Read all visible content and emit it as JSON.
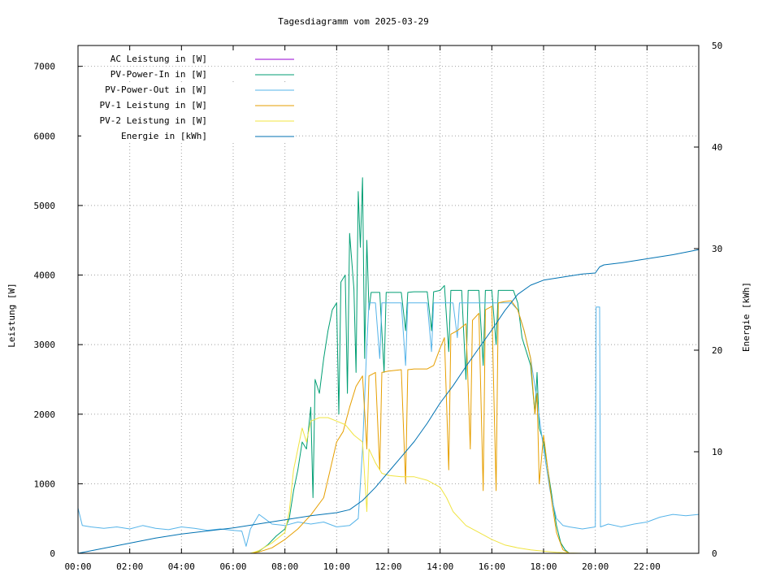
{
  "chart_data": {
    "type": "line",
    "title": "Tagesdiagramm vom 2025-03-29",
    "xlabel": "",
    "ylabel": "Leistung [W]",
    "y2label": "Energie [kWh]",
    "xlim": [
      "00:00",
      "24:00"
    ],
    "ylim": [
      0,
      7300
    ],
    "y2lim": [
      0,
      50
    ],
    "x_ticks": [
      "00:00",
      "02:00",
      "04:00",
      "06:00",
      "08:00",
      "10:00",
      "12:00",
      "14:00",
      "16:00",
      "18:00",
      "20:00",
      "22:00"
    ],
    "y_ticks": [
      0,
      1000,
      2000,
      3000,
      4000,
      5000,
      6000,
      7000
    ],
    "y2_ticks": [
      0,
      10,
      20,
      30,
      40,
      50
    ],
    "grid": true,
    "legend_position": "top-left",
    "series": [
      {
        "name": "AC Leistung in [W]",
        "axis": "left",
        "color": "#9400d3",
        "points": []
      },
      {
        "name": "PV-Power-In in [W]",
        "axis": "left",
        "color": "#009e73",
        "points": [
          [
            "06:40",
            0
          ],
          [
            "07:00",
            30
          ],
          [
            "07:20",
            120
          ],
          [
            "07:40",
            250
          ],
          [
            "08:00",
            350
          ],
          [
            "08:10",
            500
          ],
          [
            "08:20",
            900
          ],
          [
            "08:30",
            1200
          ],
          [
            "08:40",
            1600
          ],
          [
            "08:50",
            1500
          ],
          [
            "09:00",
            2100
          ],
          [
            "09:05",
            800
          ],
          [
            "09:10",
            2500
          ],
          [
            "09:20",
            2300
          ],
          [
            "09:30",
            2800
          ],
          [
            "09:40",
            3200
          ],
          [
            "09:50",
            3500
          ],
          [
            "10:00",
            3600
          ],
          [
            "10:05",
            2000
          ],
          [
            "10:10",
            3900
          ],
          [
            "10:20",
            4000
          ],
          [
            "10:25",
            2300
          ],
          [
            "10:30",
            4600
          ],
          [
            "10:40",
            3800
          ],
          [
            "10:45",
            2600
          ],
          [
            "10:50",
            5200
          ],
          [
            "10:55",
            4400
          ],
          [
            "11:00",
            5400
          ],
          [
            "11:05",
            2800
          ],
          [
            "11:10",
            4500
          ],
          [
            "11:15",
            3500
          ],
          [
            "11:20",
            3750
          ],
          [
            "11:40",
            3750
          ],
          [
            "11:50",
            2600
          ],
          [
            "11:55",
            3750
          ],
          [
            "12:30",
            3750
          ],
          [
            "12:40",
            3200
          ],
          [
            "12:45",
            3750
          ],
          [
            "13:00",
            3760
          ],
          [
            "13:30",
            3760
          ],
          [
            "13:40",
            3200
          ],
          [
            "13:45",
            3760
          ],
          [
            "14:00",
            3780
          ],
          [
            "14:10",
            3850
          ],
          [
            "14:20",
            2900
          ],
          [
            "14:25",
            3780
          ],
          [
            "14:50",
            3780
          ],
          [
            "15:00",
            2500
          ],
          [
            "15:05",
            3780
          ],
          [
            "15:30",
            3780
          ],
          [
            "15:40",
            2700
          ],
          [
            "15:45",
            3780
          ],
          [
            "16:00",
            3780
          ],
          [
            "16:10",
            3000
          ],
          [
            "16:15",
            3780
          ],
          [
            "16:40",
            3780
          ],
          [
            "16:50",
            3780
          ],
          [
            "17:00",
            3600
          ],
          [
            "17:10",
            3100
          ],
          [
            "17:20",
            2900
          ],
          [
            "17:30",
            2700
          ],
          [
            "17:40",
            2000
          ],
          [
            "17:45",
            2600
          ],
          [
            "17:50",
            1800
          ],
          [
            "18:00",
            1600
          ],
          [
            "18:10",
            1200
          ],
          [
            "18:20",
            800
          ],
          [
            "18:30",
            400
          ],
          [
            "18:40",
            150
          ],
          [
            "18:50",
            50
          ],
          [
            "19:00",
            0
          ]
        ]
      },
      {
        "name": "PV-Power-Out in [W]",
        "axis": "left",
        "color": "#56b4e9",
        "points": [
          [
            "00:00",
            650
          ],
          [
            "00:10",
            400
          ],
          [
            "00:30",
            380
          ],
          [
            "01:00",
            360
          ],
          [
            "01:30",
            380
          ],
          [
            "02:00",
            350
          ],
          [
            "02:30",
            400
          ],
          [
            "03:00",
            360
          ],
          [
            "03:30",
            340
          ],
          [
            "04:00",
            380
          ],
          [
            "04:30",
            360
          ],
          [
            "05:00",
            330
          ],
          [
            "05:30",
            350
          ],
          [
            "06:00",
            330
          ],
          [
            "06:20",
            320
          ],
          [
            "06:30",
            100
          ],
          [
            "06:40",
            350
          ],
          [
            "07:00",
            560
          ],
          [
            "07:30",
            420
          ],
          [
            "08:00",
            400
          ],
          [
            "08:30",
            450
          ],
          [
            "09:00",
            420
          ],
          [
            "09:30",
            450
          ],
          [
            "10:00",
            380
          ],
          [
            "10:30",
            400
          ],
          [
            "10:50",
            500
          ],
          [
            "11:00",
            1500
          ],
          [
            "11:10",
            3000
          ],
          [
            "11:15",
            3600
          ],
          [
            "11:30",
            3600
          ],
          [
            "11:40",
            2800
          ],
          [
            "11:45",
            3600
          ],
          [
            "12:00",
            3600
          ],
          [
            "12:30",
            3600
          ],
          [
            "12:40",
            2700
          ],
          [
            "12:45",
            3600
          ],
          [
            "13:00",
            3600
          ],
          [
            "13:30",
            3600
          ],
          [
            "13:40",
            2900
          ],
          [
            "13:45",
            3600
          ],
          [
            "14:00",
            3600
          ],
          [
            "14:30",
            3600
          ],
          [
            "14:40",
            3100
          ],
          [
            "14:45",
            3600
          ],
          [
            "15:00",
            3600
          ],
          [
            "15:30",
            3600
          ],
          [
            "16:00",
            3600
          ],
          [
            "16:30",
            3600
          ],
          [
            "16:45",
            3600
          ],
          [
            "17:00",
            3500
          ],
          [
            "17:15",
            3200
          ],
          [
            "17:30",
            2800
          ],
          [
            "17:45",
            2200
          ],
          [
            "18:00",
            1500
          ],
          [
            "18:15",
            900
          ],
          [
            "18:30",
            500
          ],
          [
            "18:45",
            400
          ],
          [
            "19:00",
            380
          ],
          [
            "19:30",
            350
          ],
          [
            "20:00",
            380
          ],
          [
            "20:02",
            3540
          ],
          [
            "20:10",
            3540
          ],
          [
            "20:12",
            380
          ],
          [
            "20:30",
            420
          ],
          [
            "21:00",
            380
          ],
          [
            "21:30",
            420
          ],
          [
            "22:00",
            450
          ],
          [
            "22:30",
            520
          ],
          [
            "23:00",
            560
          ],
          [
            "23:30",
            540
          ],
          [
            "24:00",
            560
          ]
        ]
      },
      {
        "name": "PV-1 Leistung in [W]",
        "axis": "left",
        "color": "#e69f00",
        "points": [
          [
            "06:40",
            0
          ],
          [
            "07:00",
            20
          ],
          [
            "07:30",
            80
          ],
          [
            "08:00",
            200
          ],
          [
            "08:30",
            350
          ],
          [
            "09:00",
            550
          ],
          [
            "09:30",
            800
          ],
          [
            "09:45",
            1200
          ],
          [
            "10:00",
            1600
          ],
          [
            "10:15",
            1750
          ],
          [
            "10:30",
            2100
          ],
          [
            "10:45",
            2400
          ],
          [
            "11:00",
            2550
          ],
          [
            "11:10",
            1500
          ],
          [
            "11:15",
            2550
          ],
          [
            "11:30",
            2600
          ],
          [
            "11:40",
            1200
          ],
          [
            "11:45",
            2600
          ],
          [
            "12:00",
            2620
          ],
          [
            "12:30",
            2640
          ],
          [
            "12:40",
            1000
          ],
          [
            "12:45",
            2640
          ],
          [
            "13:00",
            2650
          ],
          [
            "13:30",
            2650
          ],
          [
            "13:45",
            2700
          ],
          [
            "14:00",
            2950
          ],
          [
            "14:10",
            3100
          ],
          [
            "14:20",
            1200
          ],
          [
            "14:25",
            3150
          ],
          [
            "14:40",
            3200
          ],
          [
            "15:00",
            3300
          ],
          [
            "15:10",
            1500
          ],
          [
            "15:15",
            3350
          ],
          [
            "15:30",
            3450
          ],
          [
            "15:40",
            900
          ],
          [
            "15:45",
            3500
          ],
          [
            "16:00",
            3550
          ],
          [
            "16:10",
            900
          ],
          [
            "16:15",
            3600
          ],
          [
            "16:30",
            3620
          ],
          [
            "16:45",
            3630
          ],
          [
            "17:00",
            3500
          ],
          [
            "17:15",
            3200
          ],
          [
            "17:30",
            2800
          ],
          [
            "17:40",
            2000
          ],
          [
            "17:45",
            2300
          ],
          [
            "17:50",
            1000
          ],
          [
            "18:00",
            1700
          ],
          [
            "18:10",
            1200
          ],
          [
            "18:20",
            700
          ],
          [
            "18:30",
            300
          ],
          [
            "18:45",
            50
          ],
          [
            "19:00",
            0
          ]
        ]
      },
      {
        "name": "PV-2 Leistung in [W]",
        "axis": "left",
        "color": "#f0e442",
        "points": [
          [
            "06:40",
            0
          ],
          [
            "07:00",
            40
          ],
          [
            "07:30",
            150
          ],
          [
            "08:00",
            300
          ],
          [
            "08:10",
            600
          ],
          [
            "08:20",
            1200
          ],
          [
            "08:30",
            1500
          ],
          [
            "08:40",
            1800
          ],
          [
            "08:50",
            1600
          ],
          [
            "09:00",
            1900
          ],
          [
            "09:20",
            1950
          ],
          [
            "09:40",
            1950
          ],
          [
            "10:00",
            1900
          ],
          [
            "10:20",
            1850
          ],
          [
            "10:40",
            1700
          ],
          [
            "11:00",
            1600
          ],
          [
            "11:10",
            600
          ],
          [
            "11:15",
            1500
          ],
          [
            "11:30",
            1300
          ],
          [
            "11:45",
            1150
          ],
          [
            "12:00",
            1120
          ],
          [
            "12:30",
            1100
          ],
          [
            "13:00",
            1100
          ],
          [
            "13:30",
            1050
          ],
          [
            "14:00",
            950
          ],
          [
            "14:15",
            800
          ],
          [
            "14:30",
            600
          ],
          [
            "14:45",
            500
          ],
          [
            "15:00",
            400
          ],
          [
            "15:30",
            300
          ],
          [
            "16:00",
            200
          ],
          [
            "16:30",
            120
          ],
          [
            "17:00",
            80
          ],
          [
            "17:30",
            50
          ],
          [
            "18:00",
            30
          ],
          [
            "18:30",
            15
          ],
          [
            "19:00",
            5
          ],
          [
            "19:30",
            0
          ]
        ]
      },
      {
        "name": "Energie in [kWh]",
        "axis": "right",
        "color": "#0072b2",
        "points": [
          [
            "00:00",
            0
          ],
          [
            "01:00",
            0.5
          ],
          [
            "02:00",
            1
          ],
          [
            "03:00",
            1.5
          ],
          [
            "04:00",
            1.9
          ],
          [
            "05:00",
            2.2
          ],
          [
            "06:00",
            2.5
          ],
          [
            "07:00",
            2.9
          ],
          [
            "08:00",
            3.3
          ],
          [
            "09:00",
            3.7
          ],
          [
            "10:00",
            4.0
          ],
          [
            "10:30",
            4.3
          ],
          [
            "11:00",
            5.2
          ],
          [
            "11:30",
            6.5
          ],
          [
            "12:00",
            8.0
          ],
          [
            "12:30",
            9.5
          ],
          [
            "13:00",
            11.0
          ],
          [
            "13:30",
            12.8
          ],
          [
            "14:00",
            14.8
          ],
          [
            "14:30",
            16.5
          ],
          [
            "15:00",
            18.4
          ],
          [
            "15:30",
            20.2
          ],
          [
            "16:00",
            22.0
          ],
          [
            "16:30",
            23.9
          ],
          [
            "17:00",
            25.5
          ],
          [
            "17:30",
            26.4
          ],
          [
            "18:00",
            26.9
          ],
          [
            "18:30",
            27.1
          ],
          [
            "19:00",
            27.3
          ],
          [
            "19:30",
            27.5
          ],
          [
            "20:00",
            27.6
          ],
          [
            "20:10",
            28.2
          ],
          [
            "20:20",
            28.4
          ],
          [
            "21:00",
            28.6
          ],
          [
            "22:00",
            29.0
          ],
          [
            "23:00",
            29.4
          ],
          [
            "24:00",
            29.9
          ]
        ]
      }
    ]
  }
}
